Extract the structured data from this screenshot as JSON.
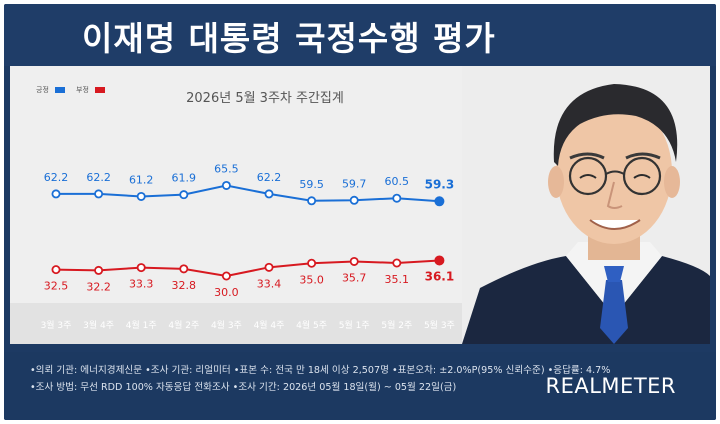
{
  "header": {
    "title": "이재명 대통령 국정수행 평가"
  },
  "chart_data": {
    "type": "line",
    "title": "2026년 5월 3주차 주간집계",
    "categories": [
      "3월 3주",
      "3월 4주",
      "4월 1주",
      "4월 2주",
      "4월 3주",
      "4월 4주",
      "4월 5주",
      "5월 1주",
      "5월 2주",
      "5월 3주"
    ],
    "series": [
      {
        "name": "긍정",
        "color": "#1a6fd6",
        "values": [
          62.2,
          62.2,
          61.2,
          61.9,
          65.5,
          62.2,
          59.5,
          59.7,
          60.5,
          59.3
        ],
        "labels": [
          "62.2",
          "62.2",
          "61.2",
          "61.9",
          "65.5",
          "62.2",
          "59.5",
          "59.7",
          "60.5",
          "59.3"
        ]
      },
      {
        "name": "부정",
        "color": "#d71920",
        "values": [
          32.5,
          32.2,
          33.3,
          32.8,
          30.0,
          33.4,
          35.0,
          35.7,
          35.1,
          36.1
        ],
        "labels": [
          "32.5",
          "32.2",
          "33.3",
          "32.8",
          "30.0",
          "33.4",
          "35.0",
          "35.7",
          "35.1",
          "36.1"
        ]
      }
    ],
    "legend_position": "top-left",
    "grid": false
  },
  "footer": {
    "notes": [
      "•의뢰 기관: 에너지경제신문 •조사 기관: 리얼미터 •표본 수: 전국 만 18세 이상 2,507명 •표본오차: ±2.0%P(95% 신뢰수준) •응답률: 4.7%",
      "•조사 방법: 무선 RDD 100% 자동응답 전화조사 •조사 기간: 2026년 05월 18일(월) ~ 05월 22일(금)"
    ],
    "brand": "REALMETER"
  },
  "colors": {
    "navy": "#1f3d68",
    "chart_bg": "#efefef",
    "positive": "#1a6fd6",
    "negative": "#d71920"
  }
}
